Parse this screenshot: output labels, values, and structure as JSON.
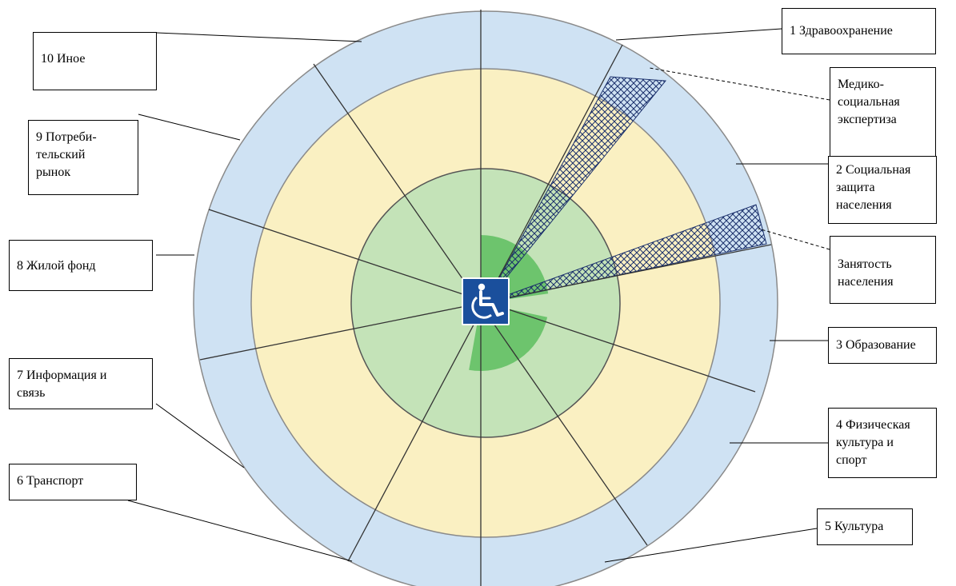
{
  "colors": {
    "outer_ring": "#cfe2f3",
    "middle_ring": "#faf0c2",
    "inner_circle": "#c4e3b8",
    "core_wedge": "#6dc46d",
    "divider": "#333333",
    "icon_bg": "#1a4f9c"
  },
  "center_icon": "wheelchair-accessibility-icon",
  "labels": {
    "health": [
      "1 Здравоохранение"
    ],
    "medical_expertise": [
      "Медико-",
      "социальная",
      "экспертиза"
    ],
    "social_protection": [
      "2 Социальная",
      "защита",
      "населения"
    ],
    "employment": [
      "Занятость",
      "населения"
    ],
    "education": [
      "3 Образование"
    ],
    "sport": [
      "4 Физическая",
      "культура и",
      "спорт"
    ],
    "culture": [
      "5 Культура"
    ],
    "transport": [
      "6 Транспорт"
    ],
    "information": [
      "7 Информация и",
      "связь"
    ],
    "housing": [
      "8 Жилой фонд"
    ],
    "consumer_market": [
      "9 Потреби-",
      "тельский",
      "рынок"
    ],
    "other": [
      "10 Иное"
    ]
  }
}
